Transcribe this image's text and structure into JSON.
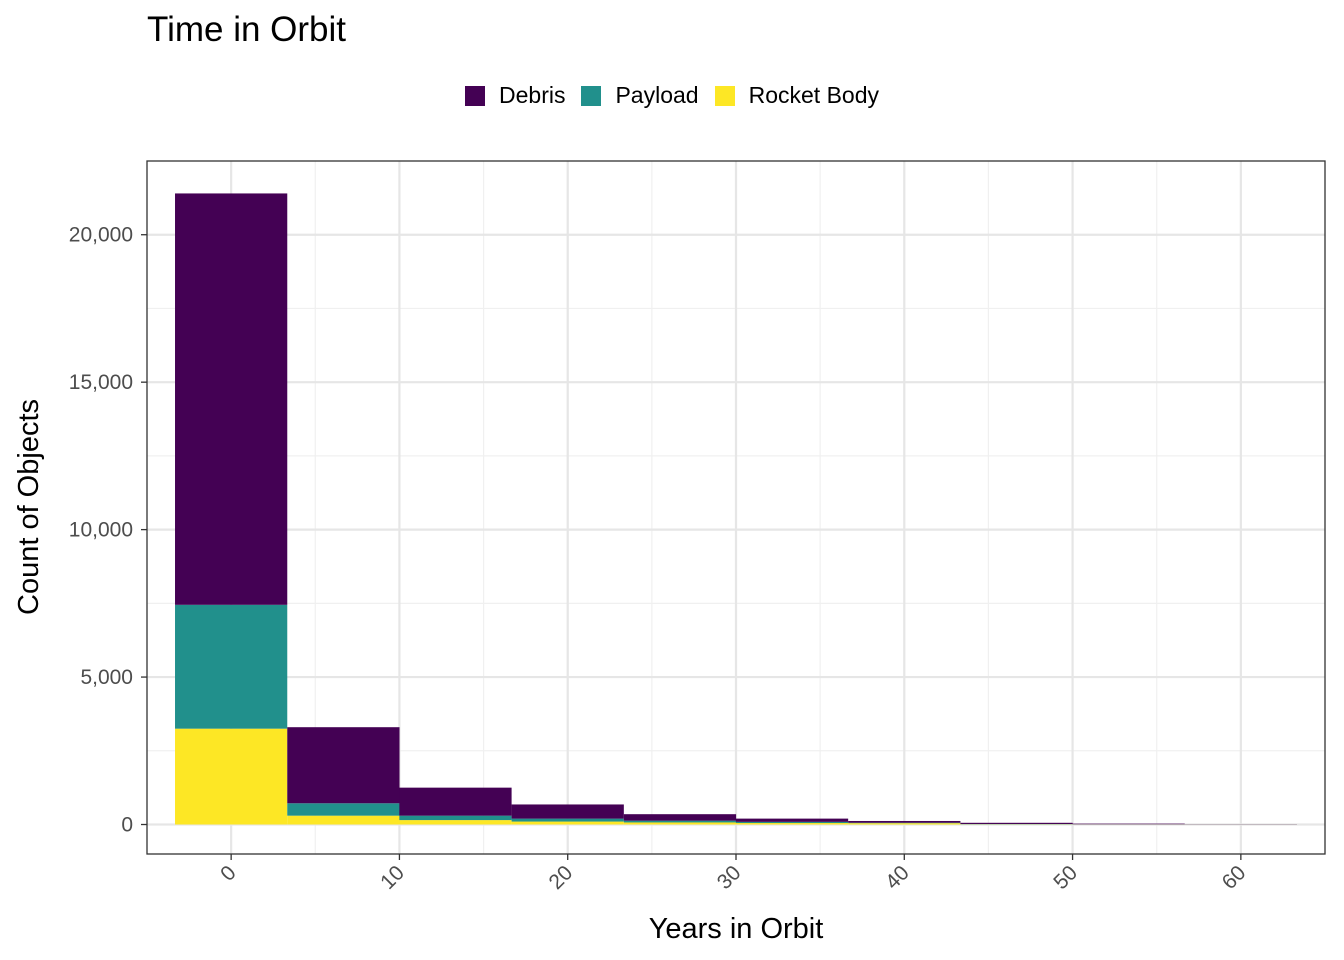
{
  "chart_data": {
    "type": "bar",
    "stacked": true,
    "title": "Time in Orbit",
    "xlabel": "Years in Orbit",
    "ylabel": "Count of Objects",
    "bin_width": 6.67,
    "x": [
      0,
      6.67,
      13.33,
      20,
      26.67,
      33.33,
      40,
      46.67,
      53.33,
      60
    ],
    "series": [
      {
        "name": "Rocket Body",
        "color": "#FDE725",
        "values": [
          3250,
          300,
          150,
          100,
          70,
          50,
          45,
          10,
          5,
          2
        ]
      },
      {
        "name": "Payload",
        "color": "#21908C",
        "values": [
          4200,
          420,
          150,
          100,
          60,
          40,
          15,
          8,
          3,
          2
        ]
      },
      {
        "name": "Debris",
        "color": "#440154",
        "values": [
          13950,
          2580,
          950,
          480,
          220,
          110,
          60,
          40,
          22,
          6
        ]
      }
    ],
    "legend_order": [
      "Debris",
      "Payload",
      "Rocket Body"
    ],
    "legend_position": "top",
    "x_ticks": [
      "0",
      "10",
      "20",
      "30",
      "40",
      "50",
      "60"
    ],
    "x_tick_values": [
      0,
      10,
      20,
      30,
      40,
      50,
      60
    ],
    "y_ticks": [
      "0",
      "5,000",
      "10,000",
      "15,000",
      "20,000"
    ],
    "y_tick_values": [
      0,
      5000,
      10000,
      15000,
      20000
    ],
    "xlim": [
      -5,
      65
    ],
    "ylim": [
      -1000,
      22500
    ],
    "grid": true
  }
}
